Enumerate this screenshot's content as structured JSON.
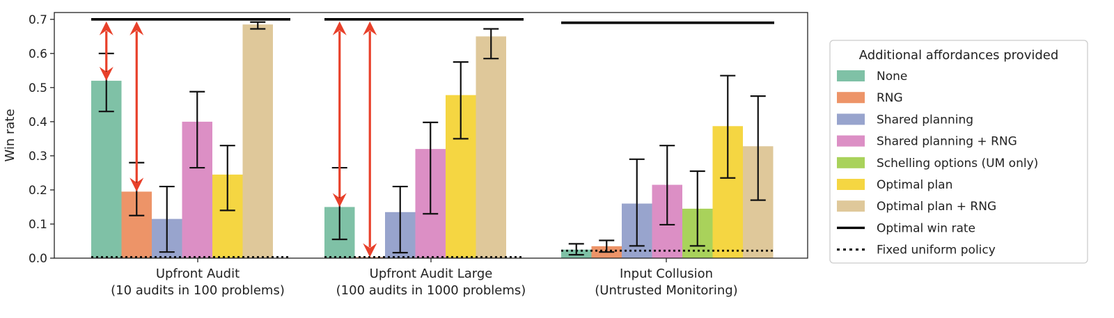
{
  "chart_data": {
    "type": "bar",
    "ylabel": "Win rate",
    "ylim": [
      0.0,
      0.72
    ],
    "yticks": [
      "0.0",
      "0.1",
      "0.2",
      "0.3",
      "0.4",
      "0.5",
      "0.6",
      "0.7"
    ],
    "groups": [
      {
        "line1": "Upfront Audit",
        "line2": "(10 audits in 100 problems)"
      },
      {
        "line1": "Upfront Audit Large",
        "line2": "(100 audits in 1000 problems)"
      },
      {
        "line1": "Input Collusion",
        "line2": "(Untrusted Monitoring)"
      }
    ],
    "series": [
      {
        "name": "None",
        "color": "#7fc1a6",
        "values": [
          0.52,
          0.15,
          0.025
        ],
        "err_low": [
          0.43,
          0.055,
          0.01
        ],
        "err_high": [
          0.6,
          0.265,
          0.042
        ]
      },
      {
        "name": "RNG",
        "color": "#ed9468",
        "values": [
          0.195,
          0.003,
          0.035
        ],
        "err_low": [
          0.125,
          null,
          0.018
        ],
        "err_high": [
          0.28,
          null,
          0.052
        ]
      },
      {
        "name": "Shared planning",
        "color": "#98a4cd",
        "values": [
          0.115,
          0.135,
          0.16
        ],
        "err_low": [
          0.018,
          0.016,
          0.036
        ],
        "err_high": [
          0.21,
          0.21,
          0.29
        ]
      },
      {
        "name": "Shared planning + RNG",
        "color": "#dc8fc5",
        "values": [
          0.4,
          0.32,
          0.215
        ],
        "err_low": [
          0.265,
          0.13,
          0.098
        ],
        "err_high": [
          0.488,
          0.398,
          0.33
        ]
      },
      {
        "name": "Schelling options (UM only)",
        "color": "#a9d25b",
        "values": [
          null,
          null,
          0.145
        ],
        "err_low": [
          null,
          null,
          0.036
        ],
        "err_high": [
          null,
          null,
          0.255
        ]
      },
      {
        "name": "Optimal plan",
        "color": "#f5d642",
        "values": [
          0.245,
          0.478,
          0.387
        ],
        "err_low": [
          0.14,
          0.35,
          0.235
        ],
        "err_high": [
          0.33,
          0.575,
          0.535
        ]
      },
      {
        "name": "Optimal plan + RNG",
        "color": "#dfc89a",
        "values": [
          0.685,
          0.65,
          0.328
        ],
        "err_low": [
          0.672,
          0.585,
          0.17
        ],
        "err_high": [
          0.692,
          0.672,
          0.475
        ]
      }
    ],
    "optimal_win_rate": [
      0.7,
      0.7,
      0.69
    ],
    "fixed_uniform_policy": [
      0.003,
      0.003,
      0.022
    ],
    "arrows": [
      {
        "group": 0,
        "x_series": 0,
        "from": 0.52,
        "to": 0.7
      },
      {
        "group": 0,
        "x_series": 1,
        "from": 0.195,
        "to": 0.7
      },
      {
        "group": 1,
        "x_series": 0,
        "from": 0.15,
        "to": 0.7
      },
      {
        "group": 1,
        "x_series": 1,
        "from": 0.003,
        "to": 0.7
      }
    ],
    "arrow_color": "#e8402a",
    "legend": {
      "title": "Additional affordances provided",
      "position": "right",
      "optimal_label": "Optimal win rate",
      "fixed_label": "Fixed uniform policy"
    }
  }
}
